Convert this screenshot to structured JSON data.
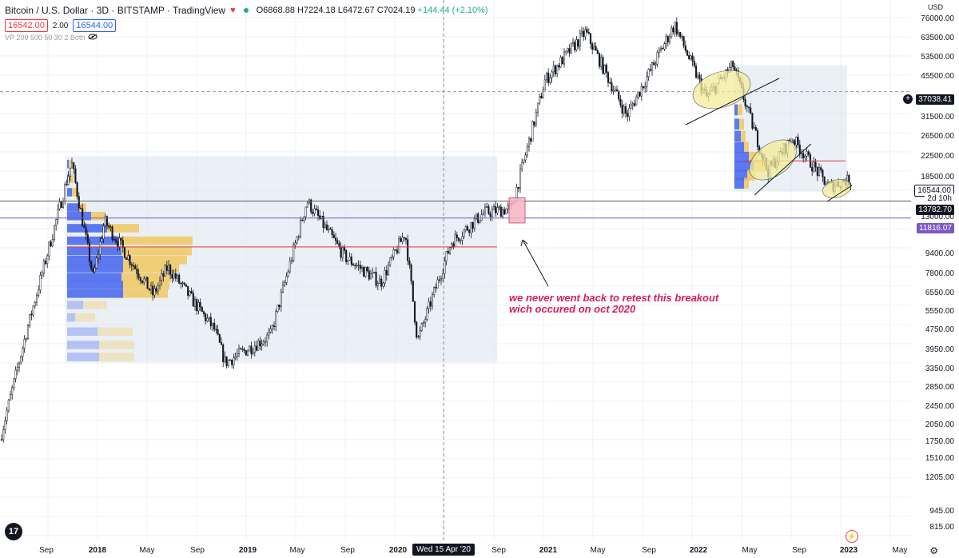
{
  "header": {
    "title": "Bitcoin / U.S. Dollar · 3D · BITSTAMP · TradingView",
    "ohlc": {
      "open": "O6868.88",
      "high": "H7224.18",
      "low": "L6472.67",
      "close": "C7024.19",
      "change": "+144.44 (+2.10%)"
    },
    "sell_price": "16542.00",
    "spread": "2.00",
    "buy_price": "16544.00",
    "indicator": "VP 200 500 50 30 2 Both"
  },
  "price_axis": {
    "currency": "USD",
    "labels": [
      "76000.00",
      "63500.00",
      "53500.00",
      "45500.00",
      "37038.41",
      "31500.00",
      "26500.00",
      "22500.00",
      "18500.00",
      "16544.00",
      "2d 10h",
      "13782.70",
      "13000.00",
      "11816.07",
      "9400.00",
      "7800.00",
      "6550.00",
      "5550.00",
      "4750.00",
      "3950.00",
      "3350.00",
      "2850.00",
      "2450.00",
      "2050.00",
      "1750.00",
      "1510.00",
      "1205.00",
      "945.00",
      "815.00"
    ]
  },
  "time_axis": {
    "labels": [
      "Sep",
      "2018",
      "May",
      "Sep",
      "2019",
      "May",
      "Sep",
      "2020",
      "Sep",
      "2021",
      "May",
      "Sep",
      "2022",
      "May",
      "Sep",
      "2023",
      "May"
    ],
    "hover": "Wed 15 Apr '20"
  },
  "annotation": {
    "line1": "we never went back to retest this breakout",
    "line2": "wich occured on oct 2020"
  },
  "colors": {
    "annotation": "#d81b60",
    "vp_blue": "#4d6cf0",
    "vp_yellow": "#f0c860",
    "resistance_red": "#e53935",
    "purple_line": "#7e57c2",
    "box_fill": "#dbe3ee"
  },
  "chart_data": {
    "type": "candlestick",
    "y_scale": "log",
    "ylim": [
      700,
      80000
    ],
    "x_range": [
      "2017-07",
      "2023-06"
    ],
    "series_close_approx": [
      {
        "date": "2017-07-01",
        "value": 1600
      },
      {
        "date": "2017-09-01",
        "value": 4200
      },
      {
        "date": "2017-12-17",
        "value": 19500
      },
      {
        "date": "2018-02-06",
        "value": 6900
      },
      {
        "date": "2018-03-05",
        "value": 11500
      },
      {
        "date": "2018-06-28",
        "value": 5900
      },
      {
        "date": "2018-08-01",
        "value": 7600
      },
      {
        "date": "2018-11-20",
        "value": 4300
      },
      {
        "date": "2018-12-15",
        "value": 3200
      },
      {
        "date": "2019-04-01",
        "value": 4100
      },
      {
        "date": "2019-06-26",
        "value": 13800
      },
      {
        "date": "2019-09-24",
        "value": 8300
      },
      {
        "date": "2019-12-17",
        "value": 6600
      },
      {
        "date": "2020-02-13",
        "value": 10400
      },
      {
        "date": "2020-03-13",
        "value": 3900
      },
      {
        "date": "2020-06-01",
        "value": 9500
      },
      {
        "date": "2020-08-17",
        "value": 12400
      },
      {
        "date": "2020-10-21",
        "value": 12900
      },
      {
        "date": "2021-01-08",
        "value": 41000
      },
      {
        "date": "2021-04-14",
        "value": 63500
      },
      {
        "date": "2021-07-20",
        "value": 29800
      },
      {
        "date": "2021-11-10",
        "value": 68000
      },
      {
        "date": "2022-01-24",
        "value": 35000
      },
      {
        "date": "2022-03-28",
        "value": 47000
      },
      {
        "date": "2022-06-18",
        "value": 18000
      },
      {
        "date": "2022-08-15",
        "value": 24400
      },
      {
        "date": "2022-11-09",
        "value": 15700
      },
      {
        "date": "2022-12-15",
        "value": 16544
      }
    ],
    "horizontal_levels": [
      {
        "value": 37038.41
      },
      {
        "value": 13782.7
      },
      {
        "value": 11816.07
      },
      {
        "value": 9100
      },
      {
        "value": 19800
      }
    ]
  }
}
